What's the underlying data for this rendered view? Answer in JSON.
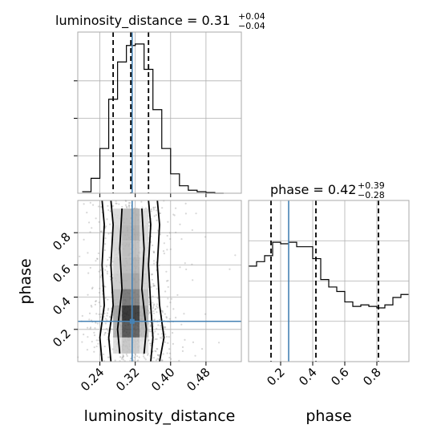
{
  "chart_data": [
    {
      "panel": "marginal-luminosity_distance",
      "type": "histogram-step",
      "title": {
        "main": "luminosity_distance = 0.31",
        "sup": "+0.04",
        "sub": "−0.04"
      },
      "x_range": [
        0.19,
        0.56
      ],
      "bin_edges": [
        0.2,
        0.22,
        0.24,
        0.26,
        0.28,
        0.3,
        0.32,
        0.34,
        0.36,
        0.38,
        0.4,
        0.42,
        0.44,
        0.46,
        0.48,
        0.5,
        0.52
      ],
      "counts": [
        0.01,
        0.1,
        0.3,
        0.63,
        0.88,
        0.99,
        1.0,
        0.83,
        0.56,
        0.3,
        0.13,
        0.05,
        0.02,
        0.01,
        0.005,
        0.0
      ],
      "quantiles": [
        0.27,
        0.31,
        0.35
      ],
      "truth": 0.313,
      "grid": true
    },
    {
      "panel": "joint-luminosity_distance-phase",
      "type": "2d-histogram-contour",
      "xlabel": "luminosity_distance",
      "ylabel": "phase",
      "x_range": [
        0.19,
        0.56
      ],
      "y_range": [
        0.0,
        1.0
      ],
      "x_ticks": [
        "0.24",
        "0.32",
        "0.40",
        "0.48"
      ],
      "x_tick_values": [
        0.24,
        0.32,
        0.4,
        0.48
      ],
      "y_ticks": [
        "0.2",
        "0.4",
        "0.6",
        "0.8"
      ],
      "y_tick_values": [
        0.2,
        0.4,
        0.6,
        0.8
      ],
      "truth": [
        0.313,
        0.25
      ],
      "grid": true
    },
    {
      "panel": "marginal-phase",
      "type": "histogram-step",
      "title": {
        "main": "phase = 0.42",
        "sup": "+0.39",
        "sub": "−0.28"
      },
      "xlabel": "phase",
      "x_range": [
        0.0,
        1.0
      ],
      "x_ticks": [
        "0.2",
        "0.4",
        "0.6",
        "0.8"
      ],
      "x_tick_values": [
        0.2,
        0.4,
        0.6,
        0.8
      ],
      "bin_edges": [
        0.0,
        0.05,
        0.1,
        0.15,
        0.2,
        0.25,
        0.3,
        0.35,
        0.4,
        0.45,
        0.5,
        0.55,
        0.6,
        0.65,
        0.7,
        0.75,
        0.8,
        0.85,
        0.9,
        0.95,
        1.0
      ],
      "counts": [
        0.64,
        0.67,
        0.71,
        0.8,
        0.79,
        0.8,
        0.77,
        0.77,
        0.69,
        0.55,
        0.5,
        0.47,
        0.4,
        0.37,
        0.38,
        0.37,
        0.36,
        0.38,
        0.43,
        0.45
      ],
      "quantiles": [
        0.14,
        0.42,
        0.81
      ],
      "truth": 0.25,
      "grid": true
    }
  ],
  "colors": {
    "truth": "#4682b4",
    "hist": "#000000",
    "grid": "#b0b0b0",
    "scatter": "#8c8c8c"
  }
}
